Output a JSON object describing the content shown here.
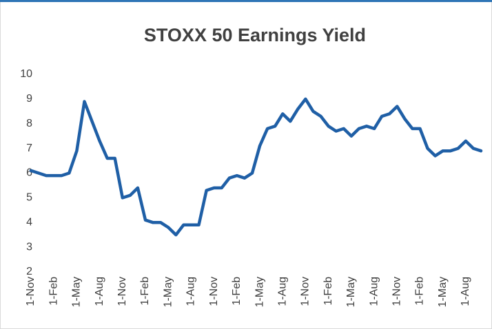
{
  "chart_data": {
    "type": "line",
    "title": "STOXX 50 Earnings Yield",
    "categories": [
      "1-Nov",
      null,
      null,
      "1-Feb",
      null,
      null,
      "1-May",
      null,
      null,
      "1-Aug",
      null,
      null,
      "1-Nov",
      null,
      null,
      "1-Feb",
      null,
      null,
      "1-May",
      null,
      null,
      "1-Aug",
      null,
      null,
      "1-Nov",
      null,
      null,
      "1-Feb",
      null,
      null,
      "1-May",
      null,
      null,
      "1-Aug",
      null,
      null,
      "1-Nov",
      null,
      null,
      "1-Feb",
      null,
      null,
      "1-May",
      null,
      null,
      "1-Aug",
      null,
      null,
      "1-Nov",
      null,
      null,
      "1-Feb",
      null,
      null,
      "1-May",
      null,
      null,
      "1-Aug",
      null,
      null
    ],
    "series": [
      {
        "name": "STOXX 50 Earnings Yield",
        "color": "#1f5fa6",
        "values": [
          6.1,
          6.0,
          5.9,
          5.9,
          5.9,
          6.0,
          6.9,
          8.9,
          8.1,
          7.3,
          6.6,
          6.6,
          5.0,
          5.1,
          5.4,
          4.1,
          4.0,
          4.0,
          3.8,
          3.5,
          3.9,
          3.9,
          3.9,
          5.3,
          5.4,
          5.4,
          5.8,
          5.9,
          5.8,
          6.0,
          7.1,
          7.8,
          7.9,
          8.4,
          8.1,
          8.6,
          9.0,
          8.5,
          8.3,
          7.9,
          7.7,
          7.8,
          7.5,
          7.8,
          7.9,
          7.8,
          8.3,
          8.4,
          8.7,
          8.2,
          7.8,
          7.8,
          7.0,
          6.7,
          6.9,
          6.9,
          7.0,
          7.3,
          7.0,
          6.9
        ]
      }
    ],
    "ylim": [
      2,
      10
    ],
    "yticks": [
      2,
      3,
      4,
      5,
      6,
      7,
      8,
      9,
      10
    ],
    "grid": false
  }
}
